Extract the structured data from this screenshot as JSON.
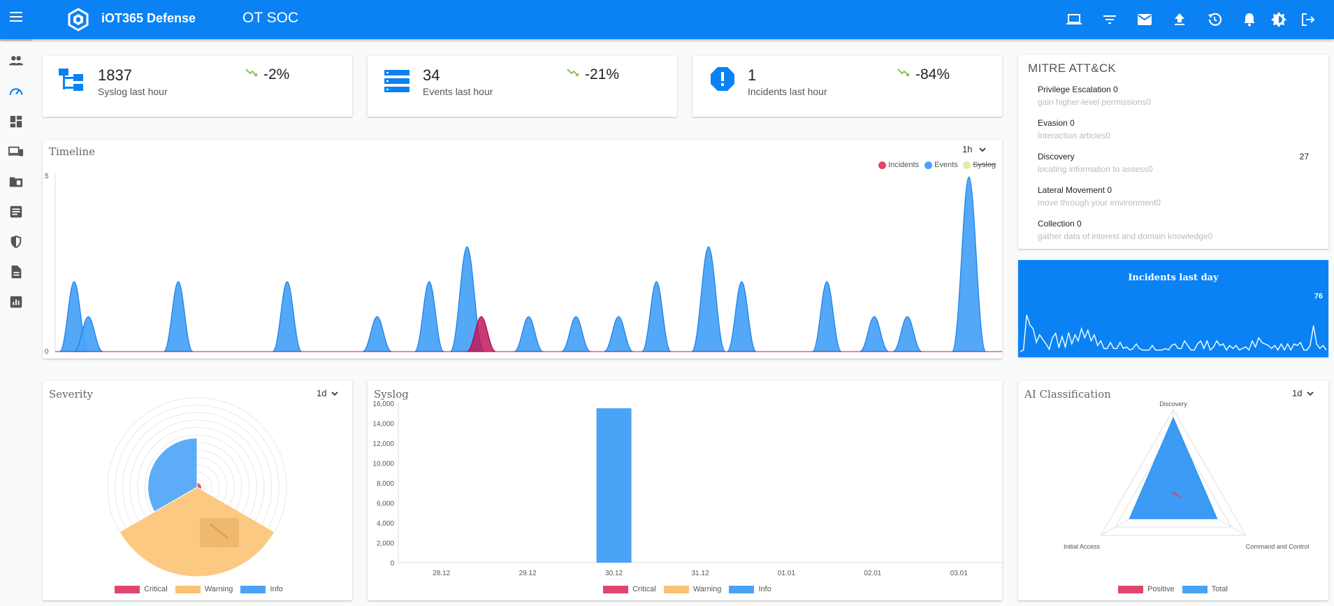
{
  "app": {
    "brand": "iOT365 Defense",
    "page_title": "OT SOC"
  },
  "header_icons": [
    "laptop-icon",
    "filter-icon",
    "mail-icon",
    "upload-icon",
    "history-icon",
    "bell-icon",
    "brightness-icon",
    "logout-icon"
  ],
  "sidebar_icons": [
    "users-icon",
    "speedometer-icon",
    "dashboard-icon",
    "devices-icon",
    "folder-icon",
    "article-icon",
    "shield-icon",
    "document-icon",
    "report-icon"
  ],
  "stats": [
    {
      "value": "1837",
      "label": "Syslog last hour",
      "pct": "-2%",
      "icon": "hierarchy-icon"
    },
    {
      "value": "34",
      "label": "Events last hour",
      "pct": "-21%",
      "icon": "storage-icon"
    },
    {
      "value": "1",
      "label": "Incidents last hour",
      "pct": "-84%",
      "icon": "alert-icon"
    }
  ],
  "colors": {
    "primary": "#0a82f4",
    "events": "#4aa3f7",
    "incidents": "#e0456b",
    "warning": "#fcc374",
    "syslog_legend": "#d9f0a3",
    "trend": "#8bc34a"
  },
  "timeline": {
    "title": "Timeline",
    "range": "1h",
    "legend": [
      "Incidents",
      "Events",
      "Syslog"
    ],
    "y_ticks": [
      "5",
      "0"
    ]
  },
  "mitre": {
    "title": "MITRE ATT&CK",
    "items": [
      {
        "name": "Privilege Escalation 0",
        "desc": "gain higher-level permissions0",
        "count": ""
      },
      {
        "name": "Evasion 0",
        "desc": "Interaction articles0",
        "count": ""
      },
      {
        "name": "Discovery",
        "desc": "locating information to assess0",
        "count": "27"
      },
      {
        "name": "Lateral Movement 0",
        "desc": "move through your environment0",
        "count": ""
      },
      {
        "name": "Collection 0",
        "desc": "gather data of interest and domain knowledge0",
        "count": ""
      }
    ]
  },
  "incidents_day": {
    "title": "Incidents last day",
    "max_label": "76"
  },
  "severity": {
    "title": "Severity",
    "range": "1d",
    "legend": [
      "Critical",
      "Warning",
      "Info"
    ]
  },
  "syslog": {
    "title": "Syslog",
    "legend": [
      "Critical",
      "Warning",
      "Info"
    ]
  },
  "ai": {
    "title": "AI Classification",
    "range": "1d",
    "axes": [
      "Discovery",
      "Initial Access",
      "Command and Control"
    ],
    "legend": [
      "Positive",
      "Total"
    ]
  },
  "chart_data": [
    {
      "type": "area",
      "title": "Timeline",
      "ylim": [
        0,
        5
      ],
      "series": [
        {
          "name": "Events",
          "peaks": [
            [
              2,
              2
            ],
            [
              3.5,
              1
            ],
            [
              13,
              2
            ],
            [
              24.5,
              2
            ],
            [
              34,
              1
            ],
            [
              39.5,
              2
            ],
            [
              43.5,
              3
            ],
            [
              50,
              1
            ],
            [
              55,
              1
            ],
            [
              59.5,
              1
            ],
            [
              63.5,
              2
            ],
            [
              69,
              3
            ],
            [
              72.5,
              2
            ],
            [
              81.5,
              2
            ],
            [
              86.5,
              1
            ],
            [
              90,
              1
            ],
            [
              96.5,
              5
            ]
          ]
        },
        {
          "name": "Incidents",
          "peaks": [
            [
              45,
              1
            ]
          ]
        }
      ]
    },
    {
      "type": "line",
      "title": "Incidents last day",
      "values": [
        0,
        2,
        48,
        35,
        30,
        12,
        22,
        16,
        10,
        3,
        18,
        24,
        5,
        20,
        6,
        25,
        10,
        22,
        14,
        30,
        18,
        28,
        14,
        22,
        8,
        14,
        4,
        4,
        12,
        4,
        4,
        12,
        4,
        6,
        2,
        4,
        10,
        4,
        2,
        2,
        2,
        8,
        2,
        2,
        2,
        4,
        2,
        8,
        10,
        4,
        4,
        14,
        8,
        2,
        2,
        10,
        14,
        4,
        14,
        2,
        6,
        14,
        8,
        10,
        2,
        8,
        4,
        8,
        2,
        4,
        6,
        2,
        14,
        6,
        18,
        12,
        10,
        8,
        4,
        8,
        2,
        10,
        2,
        10,
        2,
        10,
        8,
        12,
        2,
        2,
        8,
        34,
        10,
        4,
        8,
        2
      ],
      "max": 76
    },
    {
      "type": "pie",
      "title": "Severity",
      "categories": [
        "Critical",
        "Warning",
        "Info"
      ],
      "values": [
        1,
        16000,
        2800
      ],
      "radii": [
        0.05,
        1.0,
        0.55
      ]
    },
    {
      "type": "bar",
      "title": "Syslog",
      "categories": [
        "28.12",
        "29.12",
        "30.12",
        "31.12",
        "01.01",
        "02.01",
        "03.01"
      ],
      "series": [
        {
          "name": "Critical",
          "values": [
            0,
            0,
            0,
            0,
            0,
            0,
            0
          ]
        },
        {
          "name": "Warning",
          "values": [
            0,
            0,
            0,
            0,
            0,
            0,
            0
          ]
        },
        {
          "name": "Info",
          "values": [
            0,
            0,
            15500,
            0,
            0,
            0,
            0
          ]
        }
      ],
      "ylim": [
        0,
        16000
      ],
      "y_ticks": [
        "16,000",
        "14,000",
        "12,000",
        "10,000",
        "8,000",
        "6,000",
        "4,000",
        "2,000",
        "0"
      ]
    },
    {
      "type": "radar",
      "title": "AI Classification",
      "axes": [
        "Discovery",
        "Initial Access",
        "Command and Control"
      ],
      "series": [
        {
          "name": "Total",
          "values": [
            27,
            18,
            18
          ]
        },
        {
          "name": "Positive",
          "values": [
            0.5,
            0,
            3
          ]
        }
      ],
      "max": 30
    }
  ]
}
